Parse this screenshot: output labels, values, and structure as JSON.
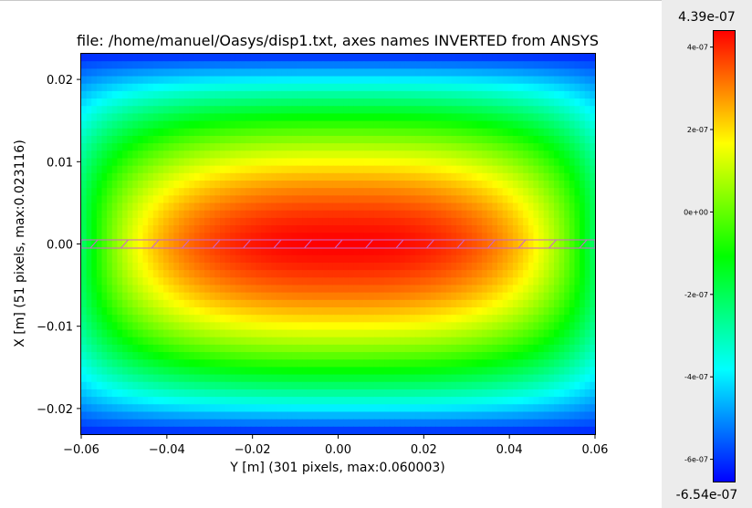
{
  "chart_data": {
    "type": "heatmap",
    "title": "file: /home/manuel/Oasys/disp1.txt, axes names INVERTED from ANSYS",
    "xlabel": "Y [m] (301 pixels, max:0.060003)",
    "ylabel": "X [m] (51 pixels, max:0.023116)",
    "x_range": [
      -0.060003,
      0.060003
    ],
    "y_range": [
      -0.023116,
      0.023116
    ],
    "xticks": [
      -0.06,
      -0.04,
      -0.02,
      0.0,
      0.02,
      0.04,
      0.06
    ],
    "xtick_labels": [
      "−0.06",
      "−0.04",
      "−0.02",
      "0.00",
      "0.02",
      "0.04",
      "0.06"
    ],
    "yticks": [
      0.02,
      0.01,
      0.0,
      -0.01,
      -0.02
    ],
    "ytick_labels": [
      "0.02",
      "0.01",
      "0.00",
      "−0.01",
      "−0.02"
    ],
    "grid_shape": {
      "rows": 51,
      "cols": 301
    },
    "value_min": -6.54e-07,
    "value_max": 4.39e-07,
    "colormap": "hsv-like (blue → cyan → green → yellow → red)",
    "overlay": {
      "type": "hatched-strip",
      "y_half_width": 0.0005,
      "color": "#cc66cc"
    },
    "colorbar": {
      "max_label": "4.39e-07",
      "min_label": "-6.54e-07",
      "ticks": [
        4e-07,
        2e-07,
        0,
        -2e-07,
        -4e-07,
        -6e-07
      ],
      "tick_labels": [
        "4e-07",
        "2e-07",
        "0e+00",
        "-2e-07",
        "-4e-07",
        "-6e-07"
      ]
    }
  }
}
